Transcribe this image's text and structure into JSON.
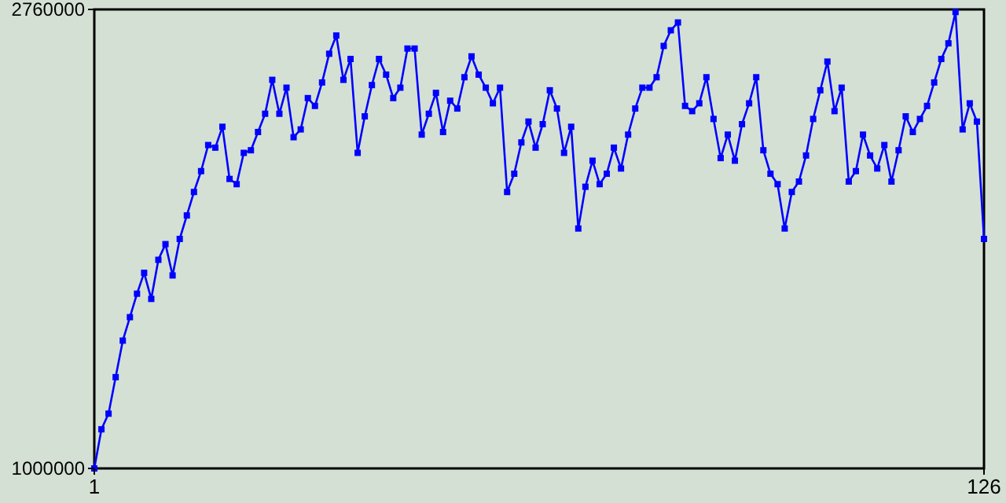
{
  "chart_data": {
    "type": "line",
    "x": [
      1,
      2,
      3,
      4,
      5,
      6,
      7,
      8,
      9,
      10,
      11,
      12,
      13,
      14,
      15,
      16,
      17,
      18,
      19,
      20,
      21,
      22,
      23,
      24,
      25,
      26,
      27,
      28,
      29,
      30,
      31,
      32,
      33,
      34,
      35,
      36,
      37,
      38,
      39,
      40,
      41,
      42,
      43,
      44,
      45,
      46,
      47,
      48,
      49,
      50,
      51,
      52,
      53,
      54,
      55,
      56,
      57,
      58,
      59,
      60,
      61,
      62,
      63,
      64,
      65,
      66,
      67,
      68,
      69,
      70,
      71,
      72,
      73,
      74,
      75,
      76,
      77,
      78,
      79,
      80,
      81,
      82,
      83,
      84,
      85,
      86,
      87,
      88,
      89,
      90,
      91,
      92,
      93,
      94,
      95,
      96,
      97,
      98,
      99,
      100,
      101,
      102,
      103,
      104,
      105,
      106,
      107,
      108,
      109,
      110,
      111,
      112,
      113,
      114,
      115,
      116,
      117,
      118,
      119,
      120,
      121,
      122,
      123,
      124,
      125,
      126
    ],
    "series": [
      {
        "color": "#0000ff",
        "values": [
          1000000,
          1150000,
          1210000,
          1350000,
          1490000,
          1580000,
          1670000,
          1750000,
          1650000,
          1800000,
          1860000,
          1740000,
          1880000,
          1970000,
          2060000,
          2140000,
          2240000,
          2230000,
          2310000,
          2110000,
          2090000,
          2210000,
          2220000,
          2290000,
          2360000,
          2490000,
          2360000,
          2460000,
          2270000,
          2300000,
          2420000,
          2390000,
          2480000,
          2590000,
          2660000,
          2490000,
          2570000,
          2210000,
          2350000,
          2470000,
          2570000,
          2510000,
          2420000,
          2460000,
          2610000,
          2610000,
          2280000,
          2360000,
          2440000,
          2290000,
          2410000,
          2380000,
          2500000,
          2580000,
          2510000,
          2460000,
          2400000,
          2460000,
          2060000,
          2130000,
          2250000,
          2330000,
          2230000,
          2320000,
          2450000,
          2380000,
          2210000,
          2310000,
          1920000,
          2080000,
          2180000,
          2090000,
          2130000,
          2230000,
          2150000,
          2280000,
          2380000,
          2460000,
          2460000,
          2500000,
          2620000,
          2680000,
          2710000,
          2390000,
          2370000,
          2400000,
          2500000,
          2340000,
          2190000,
          2280000,
          2180000,
          2320000,
          2400000,
          2500000,
          2220000,
          2130000,
          2090000,
          1920000,
          2060000,
          2100000,
          2200000,
          2340000,
          2450000,
          2560000,
          2370000,
          2460000,
          2100000,
          2140000,
          2280000,
          2200000,
          2150000,
          2240000,
          2100000,
          2220000,
          2350000,
          2290000,
          2340000,
          2390000,
          2480000,
          2570000,
          2630000,
          2750000,
          2300000,
          2400000,
          2330000,
          1880000
        ]
      }
    ],
    "xlim": [
      1,
      126
    ],
    "xticks": [
      1,
      126
    ],
    "ylim": [
      1000000,
      2760000
    ],
    "yticks": [
      1000000,
      2760000
    ],
    "marker": "square",
    "line_style": "solid"
  }
}
